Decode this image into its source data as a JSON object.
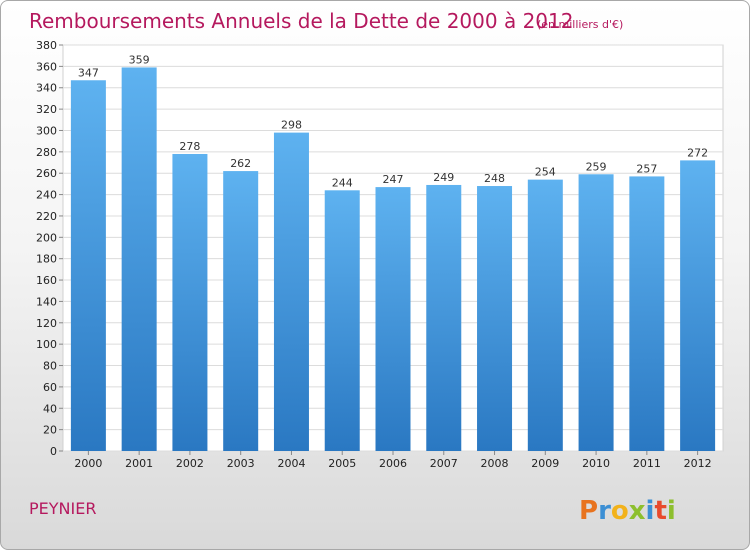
{
  "chart_data": {
    "type": "bar",
    "title": "Remboursements Annuels de la Dette de 2000 à 2012",
    "subtitle": "(en milliers d'€)",
    "categories": [
      "2000",
      "2001",
      "2002",
      "2003",
      "2004",
      "2005",
      "2006",
      "2007",
      "2008",
      "2009",
      "2010",
      "2011",
      "2012"
    ],
    "values": [
      347,
      359,
      278,
      262,
      298,
      244,
      247,
      249,
      248,
      254,
      259,
      257,
      272
    ],
    "ylim": [
      0,
      380
    ],
    "ystep": 20,
    "grid": true,
    "bar_color": "#3d8fd6",
    "bar_color_light": "#5eb2f0"
  },
  "footer": {
    "city": "PEYNIER",
    "logo": "Proxiti"
  },
  "colors": {
    "title": "#b5195e",
    "grid": "#dcdcdc"
  }
}
